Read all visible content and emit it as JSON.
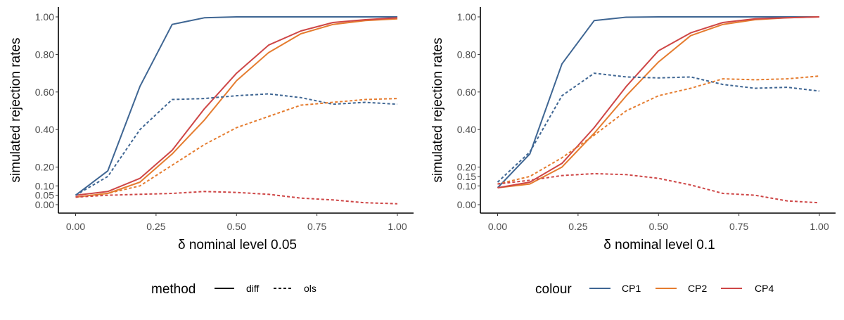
{
  "chart_data": [
    {
      "type": "line",
      "xlabel": "δ nominal level 0.05",
      "ylabel": "simulated rejection rates",
      "xlim": [
        0,
        1
      ],
      "ylim": [
        -0.03,
        1.05
      ],
      "x_ticks": [
        "0.00",
        "0.25",
        "0.50",
        "0.75",
        "1.00"
      ],
      "y_ticks": [
        "0.00",
        "0.05",
        "0.10",
        "0.20",
        "0.40",
        "0.60",
        "0.80",
        "1.00"
      ],
      "grid": false,
      "x": [
        0,
        0.1,
        0.2,
        0.3,
        0.4,
        0.5,
        0.6,
        0.7,
        0.8,
        0.9,
        1.0
      ],
      "series": [
        {
          "colour": "CP1",
          "method": "diff",
          "values": [
            0.05,
            0.18,
            0.63,
            0.96,
            0.995,
            1.0,
            1.0,
            1.0,
            1.0,
            1.0,
            1.0
          ]
        },
        {
          "colour": "CP2",
          "method": "diff",
          "values": [
            0.04,
            0.06,
            0.12,
            0.27,
            0.45,
            0.66,
            0.81,
            0.91,
            0.96,
            0.98,
            0.99
          ]
        },
        {
          "colour": "CP4",
          "method": "diff",
          "values": [
            0.05,
            0.07,
            0.14,
            0.29,
            0.51,
            0.7,
            0.85,
            0.925,
            0.97,
            0.985,
            0.995
          ]
        },
        {
          "colour": "CP1",
          "method": "ols",
          "values": [
            0.05,
            0.15,
            0.4,
            0.56,
            0.565,
            0.58,
            0.59,
            0.57,
            0.535,
            0.545,
            0.535
          ]
        },
        {
          "colour": "CP2",
          "method": "ols",
          "values": [
            0.04,
            0.06,
            0.1,
            0.21,
            0.32,
            0.41,
            0.47,
            0.53,
            0.545,
            0.56,
            0.565
          ]
        },
        {
          "colour": "CP4",
          "method": "ols",
          "values": [
            0.04,
            0.05,
            0.055,
            0.06,
            0.07,
            0.065,
            0.055,
            0.035,
            0.025,
            0.01,
            0.005
          ]
        }
      ]
    },
    {
      "type": "line",
      "xlabel": "δ nominal level 0.1",
      "ylabel": "simulated rejection rates",
      "xlim": [
        0,
        1
      ],
      "ylim": [
        -0.03,
        1.05
      ],
      "x_ticks": [
        "0.00",
        "0.25",
        "0.50",
        "0.75",
        "1.00"
      ],
      "y_ticks": [
        "0.00",
        "0.10",
        "0.15",
        "0.20",
        "0.40",
        "0.60",
        "0.80",
        "1.00"
      ],
      "grid": false,
      "x": [
        0,
        0.1,
        0.2,
        0.3,
        0.4,
        0.5,
        0.6,
        0.7,
        0.8,
        0.9,
        1.0
      ],
      "series": [
        {
          "colour": "CP1",
          "method": "diff",
          "values": [
            0.09,
            0.27,
            0.75,
            0.98,
            0.998,
            1.0,
            1.0,
            1.0,
            1.0,
            1.0,
            1.0
          ]
        },
        {
          "colour": "CP2",
          "method": "diff",
          "values": [
            0.09,
            0.11,
            0.2,
            0.38,
            0.58,
            0.76,
            0.9,
            0.96,
            0.985,
            0.995,
            1.0
          ]
        },
        {
          "colour": "CP4",
          "method": "diff",
          "values": [
            0.09,
            0.12,
            0.22,
            0.41,
            0.63,
            0.82,
            0.915,
            0.97,
            0.99,
            0.995,
            1.0
          ]
        },
        {
          "colour": "CP1",
          "method": "ols",
          "values": [
            0.12,
            0.28,
            0.58,
            0.7,
            0.68,
            0.675,
            0.68,
            0.64,
            0.62,
            0.625,
            0.605
          ]
        },
        {
          "colour": "CP2",
          "method": "ols",
          "values": [
            0.11,
            0.15,
            0.25,
            0.37,
            0.5,
            0.58,
            0.62,
            0.67,
            0.665,
            0.67,
            0.685
          ]
        },
        {
          "colour": "CP4",
          "method": "ols",
          "values": [
            0.11,
            0.13,
            0.155,
            0.165,
            0.16,
            0.14,
            0.105,
            0.06,
            0.05,
            0.02,
            0.01
          ]
        }
      ]
    }
  ],
  "legends": {
    "method": {
      "title": "method",
      "items": [
        {
          "label": "diff",
          "dash": "solid"
        },
        {
          "label": "ols",
          "dash": "dashed"
        }
      ]
    },
    "colour": {
      "title": "colour",
      "items": [
        {
          "label": "CP1",
          "color": "#3F6693"
        },
        {
          "label": "CP2",
          "color": "#E57C2F"
        },
        {
          "label": "CP4",
          "color": "#CE4646"
        }
      ]
    }
  },
  "colors": {
    "CP1": "#3F6693",
    "CP2": "#E57C2F",
    "CP4": "#CE4646"
  }
}
